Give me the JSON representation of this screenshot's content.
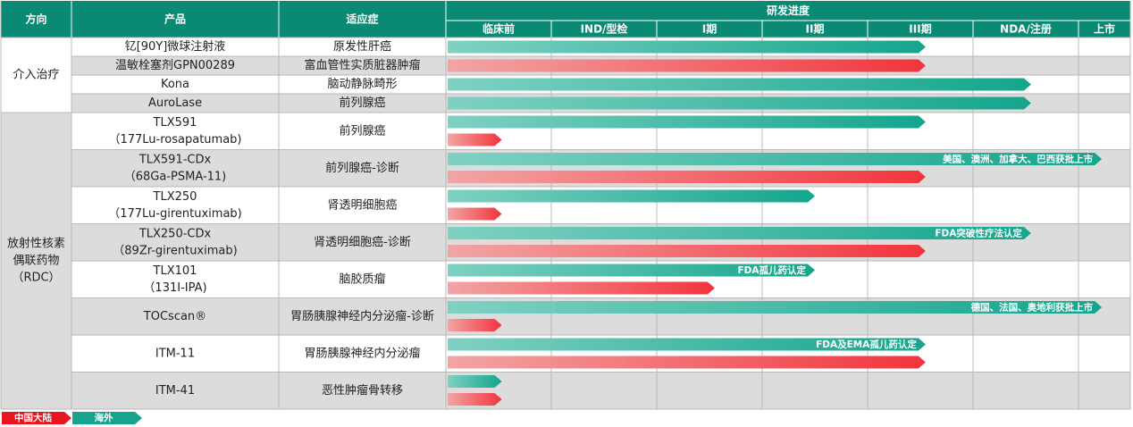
{
  "colors": {
    "header": "#0a8a74",
    "grid_alt": "#dcdcdc",
    "overseas_light": "#7fd1c2",
    "overseas_dark": "#14a58c",
    "china_light": "#f2a5a5",
    "china_dark": "#f2343c"
  },
  "chart_data": {
    "type": "table",
    "headers": {
      "direction": "方向",
      "product": "产品",
      "indication": "适应症",
      "progress": "研发进度"
    },
    "stages": [
      "临床前",
      "IND/型检",
      "I期",
      "II期",
      "III期",
      "NDA/注册",
      "上市"
    ],
    "groups": [
      {
        "name_lines": [
          "介入治疗"
        ],
        "rows": [
          0,
          1,
          2,
          3
        ]
      },
      {
        "name_lines": [
          "放射性核素",
          "偶联药物",
          "（RDC）"
        ],
        "rows": [
          4,
          5,
          6,
          7,
          8,
          9,
          10,
          11
        ]
      }
    ],
    "rows": [
      {
        "product": [
          "钇[90Y]微球注射液"
        ],
        "indication": "原发性肝癌",
        "tall": false,
        "bars": [
          {
            "region": "海外",
            "end": 4.55
          }
        ]
      },
      {
        "product": [
          "温敏栓塞剂GPN00289"
        ],
        "indication": "富血管性实质脏器肿瘤",
        "tall": false,
        "bars": [
          {
            "region": "中国大陆",
            "end": 4.55
          }
        ]
      },
      {
        "product": [
          "Kona"
        ],
        "indication": "脑动静脉畸形",
        "tall": false,
        "bars": [
          {
            "region": "海外",
            "end": 5.55
          }
        ]
      },
      {
        "product": [
          "AuroLase"
        ],
        "indication": "前列腺癌",
        "tall": false,
        "bars": [
          {
            "region": "海外",
            "end": 5.55
          }
        ]
      },
      {
        "product": [
          "TLX591",
          "（177Lu-rosapatumab)"
        ],
        "indication": "前列腺癌",
        "tall": true,
        "bars": [
          {
            "region": "海外",
            "end": 4.55
          },
          {
            "region": "中国大陆",
            "end": 0.53
          }
        ]
      },
      {
        "product": [
          "TLX591-CDx",
          "（68Ga-PSMA-11)"
        ],
        "indication": "前列腺癌-诊断",
        "tall": true,
        "bars": [
          {
            "region": "海外",
            "end": 6.45,
            "label": "美国、澳洲、加拿大、巴西获批上市"
          },
          {
            "region": "中国大陆",
            "end": 4.55
          }
        ]
      },
      {
        "product": [
          "TLX250",
          "（177Lu-girentuximab)"
        ],
        "indication": "肾透明细胞癌",
        "tall": true,
        "bars": [
          {
            "region": "海外",
            "end": 3.5
          },
          {
            "region": "中国大陆",
            "end": 0.53
          }
        ]
      },
      {
        "product": [
          "TLX250-CDx",
          "（89Zr-girentuximab)"
        ],
        "indication": "肾透明细胞癌-诊断",
        "tall": true,
        "bars": [
          {
            "region": "海外",
            "end": 5.55,
            "label": "FDA突破性疗法认定"
          },
          {
            "region": "中国大陆",
            "end": 4.55
          }
        ]
      },
      {
        "product": [
          "TLX101",
          "（131I-IPA)"
        ],
        "indication": "脑胶质瘤",
        "tall": true,
        "bars": [
          {
            "region": "海外",
            "end": 3.5,
            "label": "FDA孤儿药认定"
          },
          {
            "region": "中国大陆",
            "end": 2.55
          }
        ]
      },
      {
        "product": [
          "TOCscan®"
        ],
        "indication": "胃肠胰腺神经内分泌瘤-诊断",
        "tall": true,
        "bars": [
          {
            "region": "海外",
            "end": 6.45,
            "label": "德国、法国、奥地利获批上市"
          },
          {
            "region": "中国大陆",
            "end": 0.53
          }
        ]
      },
      {
        "product": [
          "ITM-11"
        ],
        "indication": "胃肠胰腺神经内分泌瘤",
        "tall": true,
        "bars": [
          {
            "region": "海外",
            "end": 4.55,
            "label": "FDA及EMA孤儿药认定"
          },
          {
            "region": "中国大陆",
            "end": 4.55
          }
        ]
      },
      {
        "product": [
          "ITM-41"
        ],
        "indication": "恶性肿瘤骨转移",
        "tall": true,
        "bars": [
          {
            "region": "海外",
            "end": 0.53
          },
          {
            "region": "中国大陆",
            "end": 0.53
          }
        ]
      }
    ],
    "legend": [
      {
        "label": "中国大陆",
        "color": "#e8141e"
      },
      {
        "label": "海外",
        "color": "#14a58c"
      }
    ],
    "legend_position": "bottom-left"
  }
}
